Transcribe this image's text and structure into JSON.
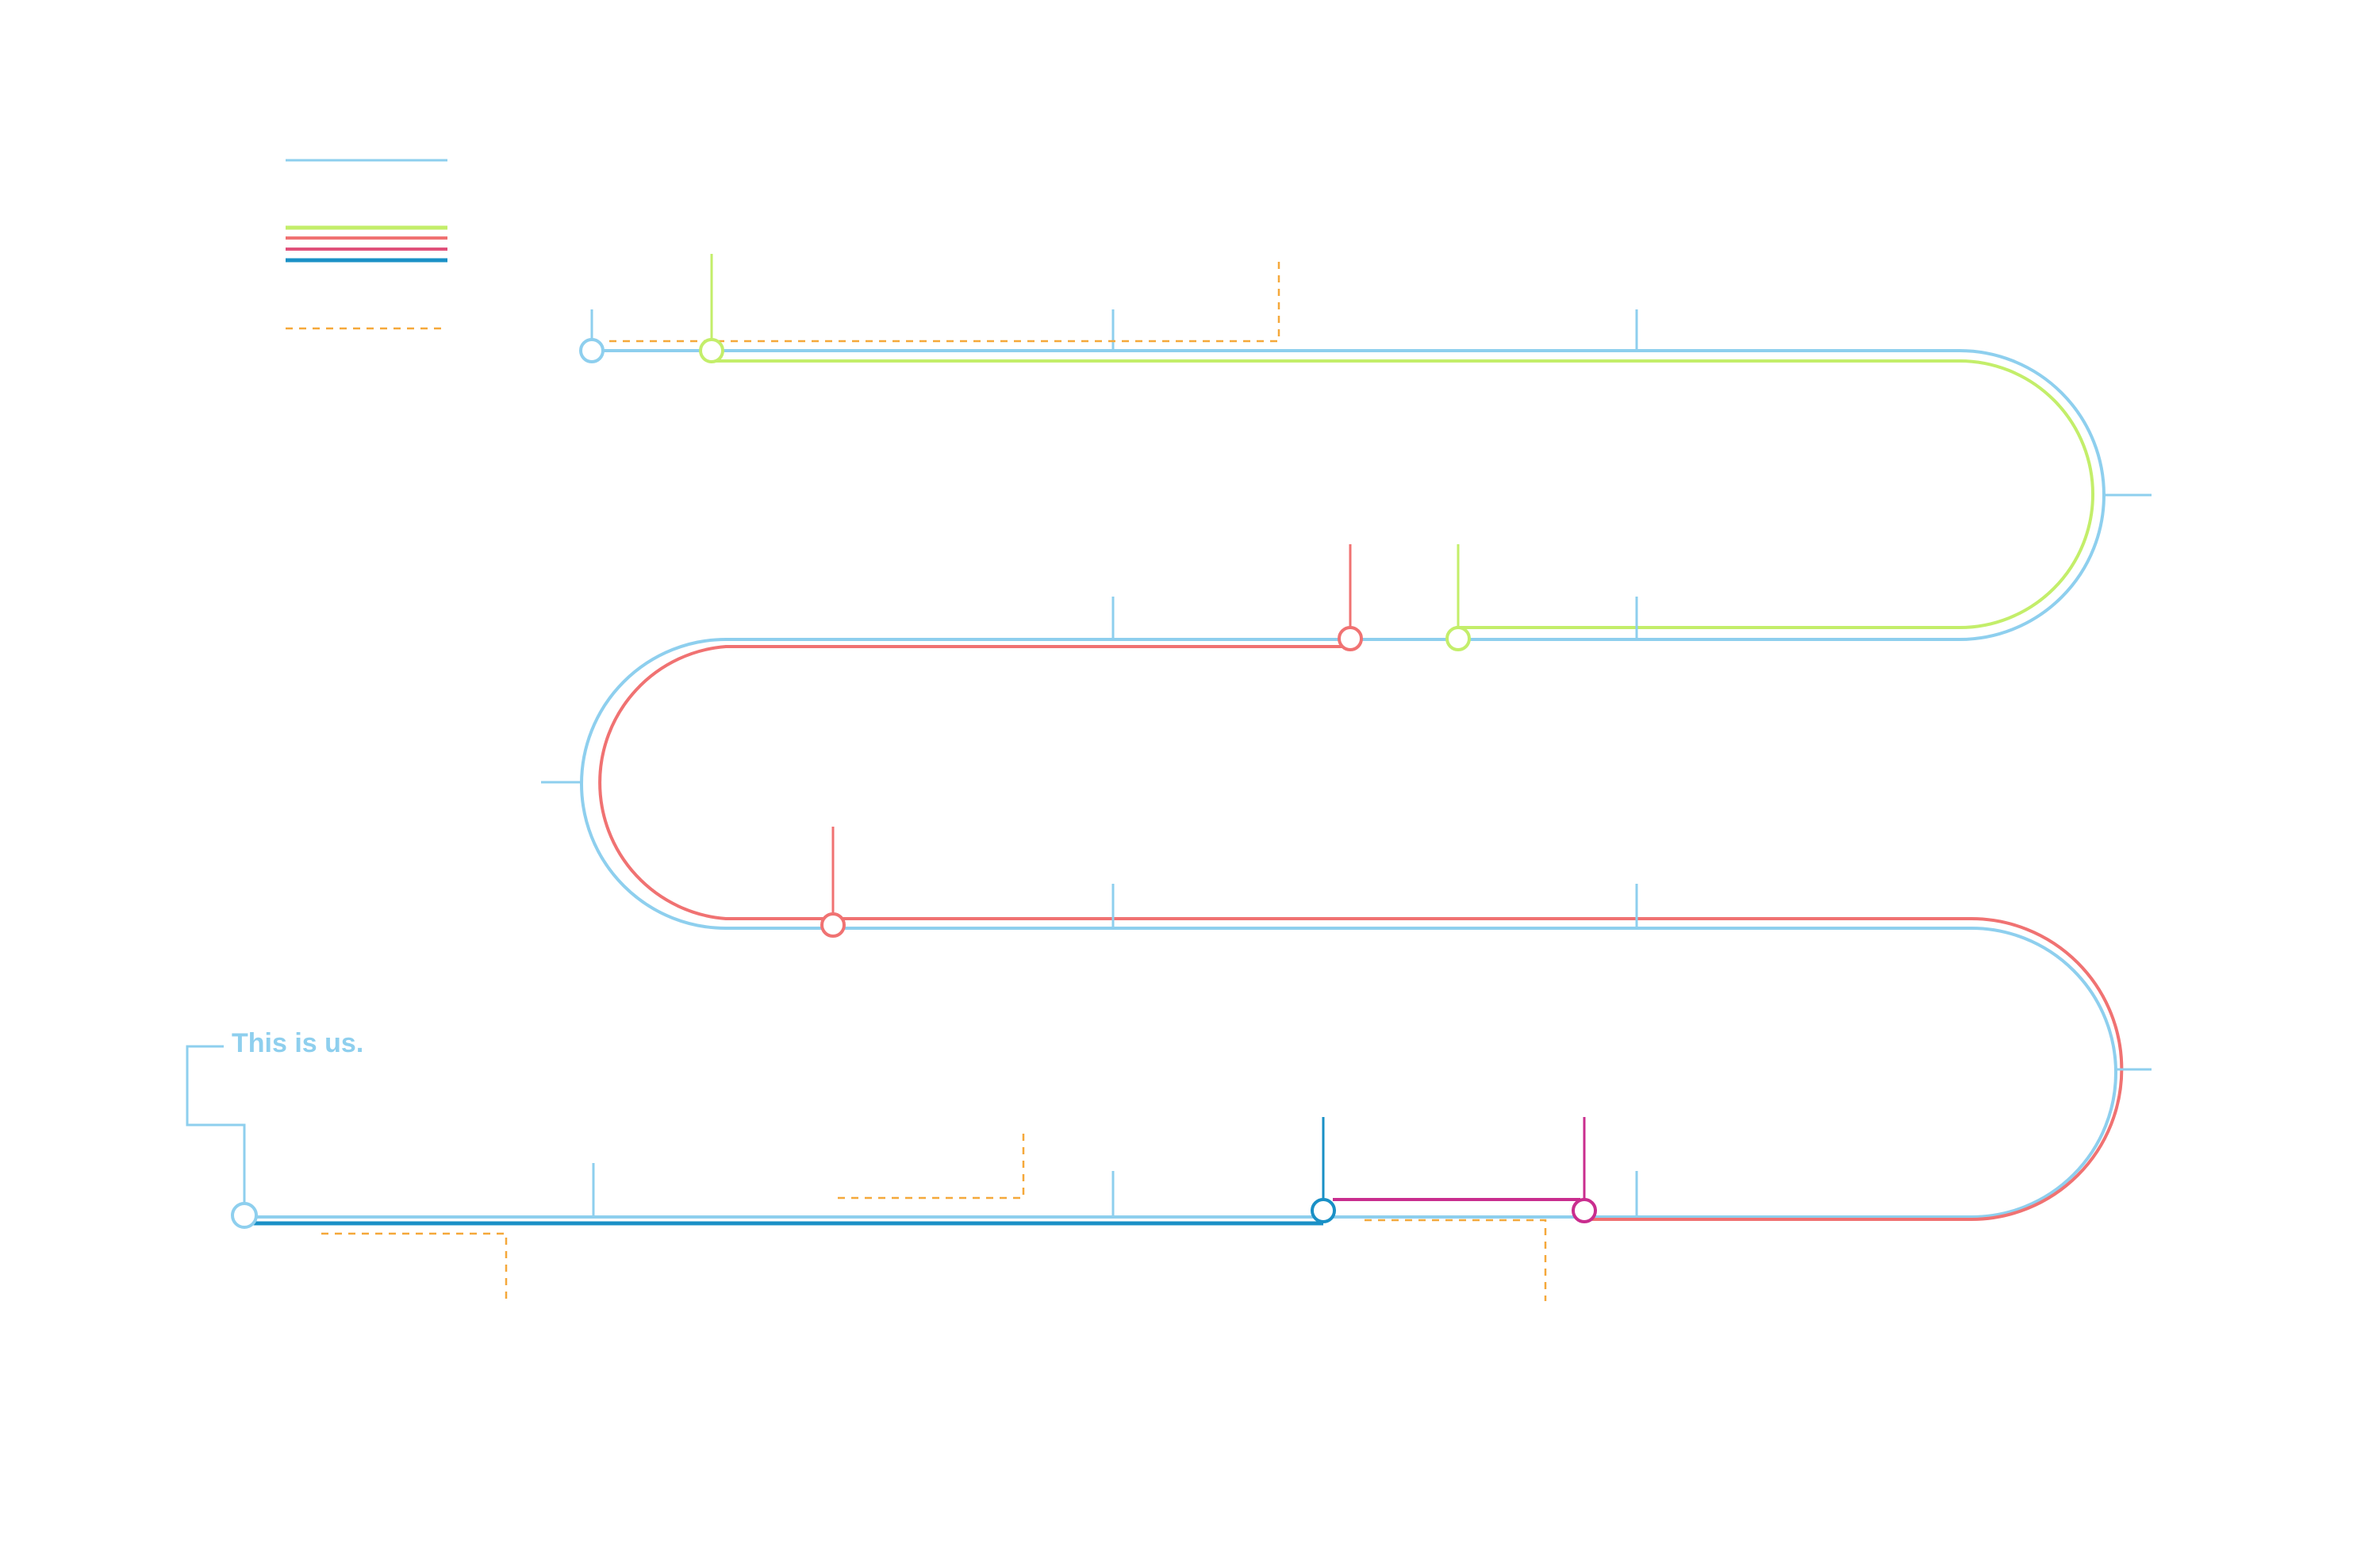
{
  "diagram": {
    "caption": "This is us.",
    "colors": {
      "main_track": "#8ecfee",
      "green_track": "#c3ee6a",
      "red_track": "#f07272",
      "blue_track": "#1a90c6",
      "magenta_track": "#c92d8e",
      "dashed_annotation": "#f5a83a",
      "background": "#ffffff"
    },
    "legend": [
      {
        "name": "legend-main-line",
        "color": "main_track",
        "style": "solid"
      },
      {
        "name": "legend-green-line",
        "color": "green_track",
        "style": "solid"
      },
      {
        "name": "legend-red-line",
        "color": "red_track",
        "style": "solid"
      },
      {
        "name": "legend-magenta-line",
        "color": "magenta_track",
        "style": "solid"
      },
      {
        "name": "legend-blue-line",
        "color": "blue_track",
        "style": "solid"
      },
      {
        "name": "legend-dashed-line",
        "color": "dashed_annotation",
        "style": "dashed"
      }
    ],
    "nodes": [
      {
        "name": "node-start-top",
        "color": "main_track"
      },
      {
        "name": "node-green-start",
        "color": "green_track"
      },
      {
        "name": "node-red-start",
        "color": "red_track"
      },
      {
        "name": "node-green-end",
        "color": "green_track"
      },
      {
        "name": "node-red-lower",
        "color": "red_track"
      },
      {
        "name": "node-blue-start",
        "color": "blue_track"
      },
      {
        "name": "node-magenta-start",
        "color": "magenta_track"
      },
      {
        "name": "node-end-bottom",
        "color": "main_track"
      }
    ]
  }
}
